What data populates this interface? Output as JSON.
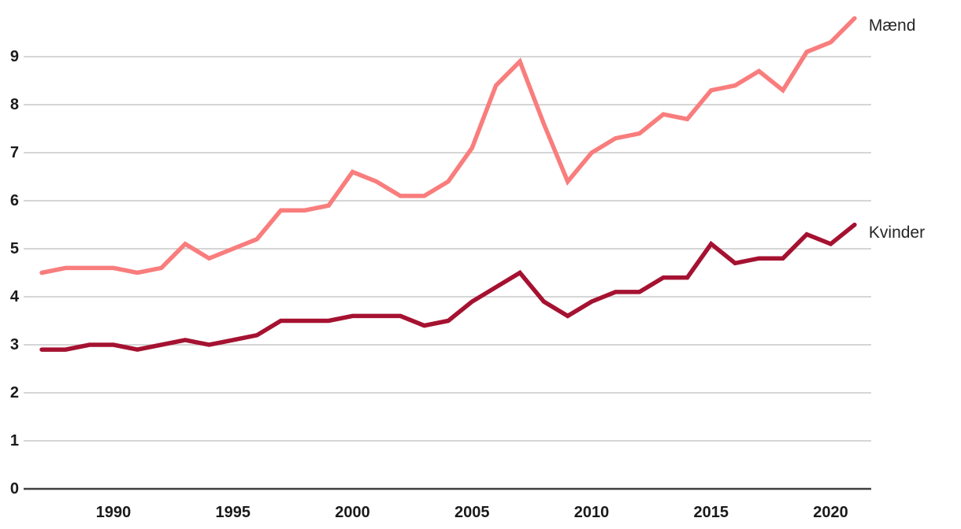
{
  "chart_data": {
    "type": "line",
    "title": "",
    "xlabel": "",
    "ylabel": "",
    "grid": "horizontal",
    "legend_position": "line-end-labels",
    "x": [
      1987,
      1988,
      1989,
      1990,
      1991,
      1992,
      1993,
      1994,
      1995,
      1996,
      1997,
      1998,
      1999,
      2000,
      2001,
      2002,
      2003,
      2004,
      2005,
      2006,
      2007,
      2008,
      2009,
      2010,
      2011,
      2012,
      2013,
      2014,
      2015,
      2016,
      2017,
      2018,
      2019,
      2020,
      2021
    ],
    "x_tick_labels": [
      "1990",
      "1995",
      "2000",
      "2005",
      "2010",
      "2015",
      "2020"
    ],
    "x_tick_values": [
      1990,
      1995,
      2000,
      2005,
      2010,
      2015,
      2020
    ],
    "y_tick_labels": [
      "0",
      "1",
      "2",
      "3",
      "4",
      "5",
      "6",
      "7",
      "8",
      "9"
    ],
    "y_tick_values": [
      0,
      1,
      2,
      3,
      4,
      5,
      6,
      7,
      8,
      9
    ],
    "xlim": [
      1987,
      2021
    ],
    "ylim": [
      0,
      10
    ],
    "series": [
      {
        "name": "Mænd",
        "color": "#f97d7d",
        "values": [
          4.5,
          4.6,
          4.6,
          4.6,
          4.5,
          4.6,
          5.1,
          4.8,
          5.0,
          5.2,
          5.8,
          5.8,
          5.9,
          6.6,
          6.4,
          6.1,
          6.1,
          6.4,
          7.1,
          8.4,
          8.9,
          7.6,
          6.4,
          7.0,
          7.3,
          7.4,
          7.8,
          7.7,
          8.3,
          8.4,
          8.7,
          8.3,
          9.1,
          9.3,
          9.8
        ]
      },
      {
        "name": "Kvinder",
        "color": "#a51231",
        "values": [
          2.9,
          2.9,
          3.0,
          3.0,
          2.9,
          3.0,
          3.1,
          3.0,
          3.1,
          3.2,
          3.5,
          3.5,
          3.5,
          3.6,
          3.6,
          3.6,
          3.4,
          3.5,
          3.9,
          4.2,
          4.5,
          3.9,
          3.6,
          3.9,
          4.1,
          4.1,
          4.4,
          4.4,
          5.1,
          4.7,
          4.8,
          4.8,
          5.3,
          5.1,
          5.5
        ]
      }
    ],
    "colors": {
      "gridline": "#c9c9c9",
      "axis_line": "#404040",
      "tick_text": "#1a1a1a",
      "background": "#ffffff"
    }
  }
}
